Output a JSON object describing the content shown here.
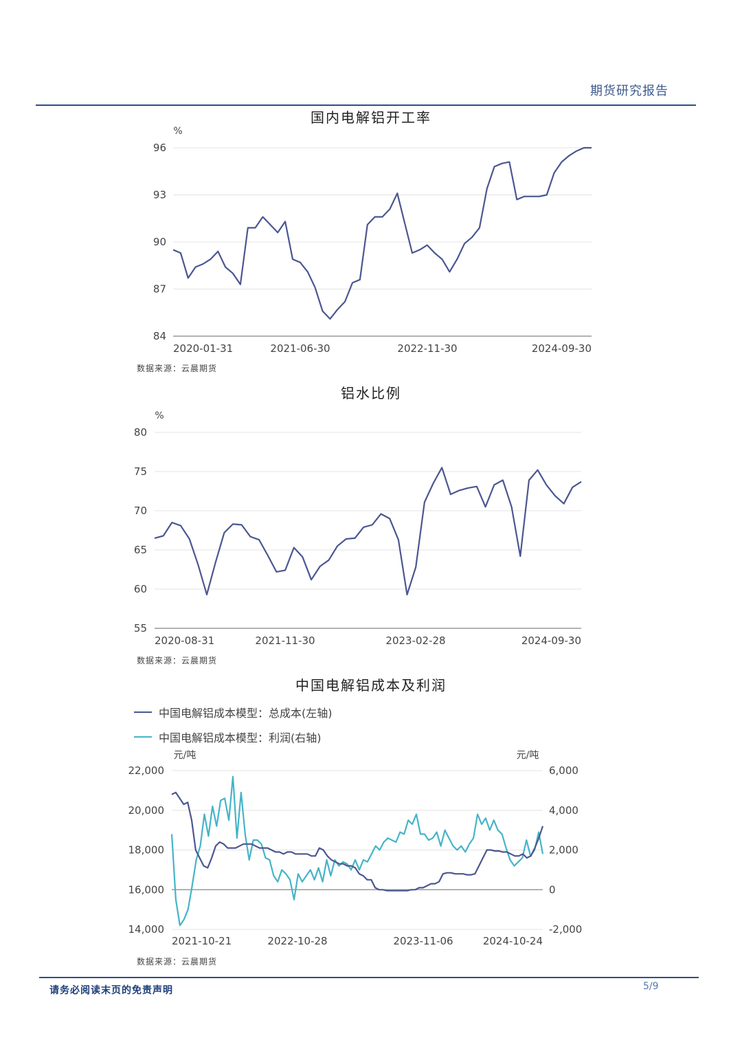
{
  "header": {
    "title": "期货研究报告"
  },
  "footer": {
    "disclaimer": "请务必阅读末页的免责声明",
    "page": "5/9"
  },
  "chart_data": [
    {
      "type": "line",
      "title": "国内电解铝开工率",
      "unit": "%",
      "ylim": [
        84,
        96
      ],
      "yticks": [
        "96",
        "93",
        "90",
        "87",
        "84"
      ],
      "xticks": [
        "2020-01-31",
        "2021-06-30",
        "2022-11-30",
        "2024-09-30"
      ],
      "source": "数据来源：云晨期货",
      "series": [
        {
          "values": [
            89.5,
            89.3,
            87.7,
            88.4,
            88.6,
            88.9,
            89.4,
            88.4,
            88.0,
            87.3,
            90.9,
            90.9,
            91.6,
            91.1,
            90.6,
            91.3,
            88.9,
            88.7,
            88.1,
            87.1,
            85.6,
            85.1,
            85.7,
            86.2,
            87.4,
            87.6,
            91.1,
            91.6,
            91.6,
            92.1,
            93.1,
            91.2,
            89.3,
            89.5,
            89.8,
            89.3,
            88.9,
            88.1,
            88.9,
            89.9,
            90.3,
            90.9,
            93.4,
            94.8,
            95.0,
            95.1,
            92.7,
            92.9,
            92.9,
            92.9,
            93.0,
            94.4,
            95.1,
            95.5,
            95.8,
            96.0,
            96.0
          ]
        }
      ]
    },
    {
      "type": "line",
      "title": "铝水比例",
      "unit": "%",
      "ylim": [
        55,
        80
      ],
      "yticks": [
        "80",
        "75",
        "70",
        "65",
        "60",
        "55"
      ],
      "xticks": [
        "2020-08-31",
        "2021-11-30",
        "2023-02-28",
        "2024-09-30"
      ],
      "source": "数据来源：云晨期货",
      "series": [
        {
          "values": [
            66.5,
            66.8,
            68.5,
            68.1,
            66.4,
            63.1,
            59.3,
            63.4,
            67.2,
            68.3,
            68.2,
            66.7,
            66.3,
            64.3,
            62.2,
            62.4,
            65.3,
            64.1,
            61.2,
            62.9,
            63.7,
            65.5,
            66.4,
            66.5,
            67.9,
            68.2,
            69.6,
            69.0,
            66.3,
            59.3,
            62.8,
            71.1,
            73.5,
            75.5,
            72.1,
            72.6,
            72.9,
            73.1,
            70.5,
            73.3,
            73.9,
            70.5,
            64.2,
            73.9,
            75.2,
            73.3,
            71.9,
            70.9,
            73.0,
            73.7
          ]
        }
      ]
    },
    {
      "type": "line",
      "title": "中国电解铝成本及利润",
      "left_unit": "元/吨",
      "right_unit": "元/吨",
      "ylim_left": [
        14000,
        22000
      ],
      "ylim_right": [
        -2000,
        6000
      ],
      "yticks_left": [
        "22,000",
        "20,000",
        "18,000",
        "16,000",
        "14,000"
      ],
      "yticks_right": [
        "6,000",
        "4,000",
        "2,000",
        "0",
        "-2,000"
      ],
      "xticks": [
        "2021-10-21",
        "2022-10-28",
        "2023-11-06",
        "2024-10-24"
      ],
      "source": "数据来源：云晨期货",
      "series": [
        {
          "name": "中国电解铝成本模型：总成本(左轴)",
          "color": "#4b5690",
          "values": [
            20800,
            20900,
            20600,
            20300,
            20400,
            19500,
            18000,
            17600,
            17200,
            17100,
            17600,
            18200,
            18400,
            18300,
            18100,
            18100,
            18100,
            18200,
            18300,
            18300,
            18300,
            18200,
            18100,
            18100,
            18100,
            18000,
            17900,
            17900,
            17800,
            17900,
            17900,
            17800,
            17800,
            17800,
            17800,
            17700,
            17700,
            18100,
            18000,
            17700,
            17500,
            17400,
            17300,
            17300,
            17200,
            17200,
            17100,
            16800,
            16700,
            16500,
            16500,
            16100,
            16000,
            16000,
            15950,
            15950,
            15950,
            15950,
            15950,
            15950,
            16000,
            16000,
            16100,
            16100,
            16200,
            16300,
            16300,
            16400,
            16800,
            16850,
            16850,
            16800,
            16800,
            16800,
            16750,
            16750,
            16800,
            17200,
            17600,
            18000,
            18000,
            17950,
            17950,
            17900,
            17900,
            17800,
            17700,
            17700,
            17800,
            17600,
            17700,
            18100,
            18600,
            19200
          ]
        },
        {
          "name": "中国电解铝成本模型：利润(右轴)",
          "color": "#45b4c8",
          "values": [
            2800,
            -500,
            -1800,
            -1500,
            -1000,
            200,
            1500,
            2200,
            3800,
            2700,
            4200,
            3200,
            4500,
            4600,
            3500,
            5700,
            2600,
            4900,
            2800,
            1500,
            2500,
            2500,
            2300,
            1600,
            1500,
            700,
            400,
            1000,
            800,
            500,
            -500,
            800,
            400,
            700,
            1000,
            500,
            1100,
            400,
            1500,
            700,
            1500,
            1200,
            1400,
            1300,
            1000,
            1500,
            1000,
            1500,
            1400,
            1800,
            2200,
            2000,
            2400,
            2600,
            2500,
            2400,
            2900,
            2800,
            3500,
            3300,
            3800,
            2800,
            2800,
            2500,
            2600,
            2900,
            2200,
            3000,
            2600,
            2200,
            2000,
            2200,
            1900,
            2300,
            2600,
            3800,
            3300,
            3600,
            3000,
            3500,
            3000,
            2800,
            2100,
            1500,
            1200,
            1400,
            1600,
            2500,
            1700,
            2000,
            2900,
            1800
          ]
        }
      ]
    }
  ]
}
